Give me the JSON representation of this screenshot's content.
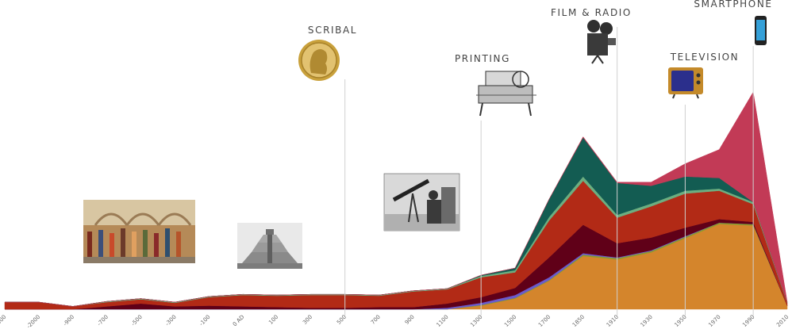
{
  "chart_data": {
    "type": "area",
    "stacked": true,
    "title": "",
    "xlabel": "",
    "ylabel": "",
    "y_axis_visible": false,
    "grid": false,
    "legend": "none",
    "categories": [
      "-4000",
      "-2000",
      "-900",
      "-700",
      "-500",
      "-300",
      "-100",
      "0 AD",
      "100",
      "300",
      "500",
      "700",
      "900",
      "1100",
      "1300",
      "1500",
      "1700",
      "1850",
      "1910",
      "1930",
      "1950",
      "1970",
      "1990",
      "2010"
    ],
    "series": [
      {
        "color": "#d4852c",
        "values": [
          0,
          0,
          0,
          0,
          0,
          0,
          0,
          0,
          0,
          0,
          0,
          0,
          0,
          0,
          5,
          15,
          40,
          75,
          70,
          80,
          100,
          120,
          118,
          5
        ]
      },
      {
        "color": "#8c9a2c",
        "values": [
          0,
          0,
          0,
          0,
          0,
          0,
          0,
          0,
          0,
          0,
          0,
          0,
          0,
          0,
          1,
          1,
          1,
          2,
          2,
          2,
          2,
          2,
          2,
          0
        ]
      },
      {
        "color": "#6a5acd",
        "values": [
          0,
          0,
          0,
          0,
          0,
          0,
          0,
          0,
          0,
          0,
          0,
          0,
          0,
          2,
          3,
          4,
          4,
          2,
          1,
          1,
          1,
          0,
          0,
          0
        ]
      },
      {
        "color": "#600018",
        "values": [
          0,
          0,
          0,
          4,
          8,
          4,
          5,
          4,
          3,
          2,
          2,
          3,
          3,
          6,
          8,
          10,
          28,
          40,
          20,
          18,
          12,
          5,
          3,
          0
        ]
      },
      {
        "color": "#b22a16",
        "values": [
          10,
          10,
          4,
          6,
          6,
          5,
          12,
          16,
          16,
          18,
          18,
          16,
          22,
          20,
          28,
          22,
          52,
          62,
          36,
          44,
          48,
          40,
          25,
          4
        ]
      },
      {
        "color": "#6cae80",
        "values": [
          0,
          0,
          0,
          1,
          1,
          1,
          1,
          1,
          1,
          1,
          1,
          1,
          1,
          1,
          2,
          3,
          5,
          6,
          4,
          4,
          4,
          3,
          3,
          1
        ]
      },
      {
        "color": "#135c52",
        "values": [
          0,
          0,
          0,
          0,
          0,
          0,
          0,
          0,
          0,
          0,
          0,
          0,
          0,
          0,
          1,
          3,
          25,
          55,
          45,
          25,
          20,
          15,
          0,
          0
        ]
      },
      {
        "color": "#c23a56",
        "values": [
          0,
          0,
          0,
          0,
          0,
          0,
          0,
          0,
          0,
          0,
          0,
          0,
          0,
          0,
          0,
          0,
          0,
          1,
          1,
          5,
          18,
          40,
          155,
          0
        ]
      }
    ],
    "annotations": [
      {
        "label": "SCRIBAL",
        "at": "500",
        "icon": "gold-coin-icon"
      },
      {
        "label": "PRINTING",
        "at": "1300",
        "icon": "printing-press-icon"
      },
      {
        "label": "FILM & RADIO",
        "at": "1910",
        "icon": "film-camera-icon"
      },
      {
        "label": "TELEVISION",
        "at": "1950",
        "icon": "television-icon"
      },
      {
        "label": "SMARTPHONE",
        "at": "1990",
        "icon": "smartphone-icon"
      }
    ],
    "pictures": [
      "school-of-athens-painting",
      "step-pyramid-photo",
      "astronomer-telescope-engraving"
    ]
  }
}
